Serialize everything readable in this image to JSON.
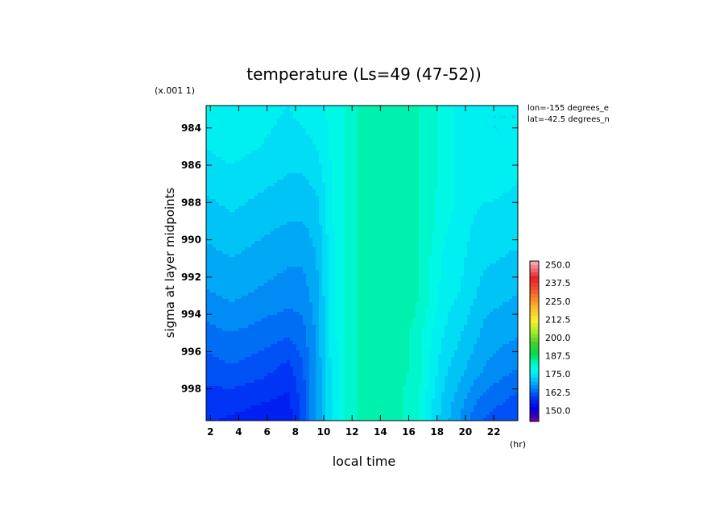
{
  "chart_data": {
    "type": "heatmap",
    "title": "temperature (Ls=49 (47-52))",
    "xlabel": "local time",
    "ylabel": "sigma at layer midpoints",
    "x_unit": "(hr)",
    "y_scale_note": "(x.001 1)",
    "annotations": [
      "lon=-155 degrees_e",
      "lat=-42.5 degrees_n"
    ],
    "xlim": [
      1.7,
      23.7
    ],
    "ylim": [
      999.7,
      982.8
    ],
    "x_ticks": [
      2,
      4,
      6,
      8,
      10,
      12,
      14,
      16,
      18,
      20,
      22
    ],
    "x_tick_labels": [
      "2",
      "4",
      "6",
      "8",
      "10",
      "12",
      "14",
      "16",
      "18",
      "20",
      "22"
    ],
    "y_ticks": [
      984,
      986,
      988,
      990,
      992,
      994,
      996,
      998
    ],
    "y_tick_labels": [
      "984",
      "986",
      "988",
      "990",
      "992",
      "994",
      "996",
      "998"
    ],
    "x": [
      1.5,
      3.5,
      5.5,
      7.5,
      8.5,
      9.5,
      10.5,
      11.5,
      12.5,
      14.5,
      16.5,
      17.5,
      18.5,
      19.5,
      20.5,
      21.5,
      23.5
    ],
    "y": [
      982.8,
      985.0,
      987.0,
      989.0,
      991.0,
      993.0,
      995.0,
      997.0,
      998.5,
      999.7
    ],
    "z": [
      [
        178,
        177,
        176,
        175,
        176,
        177,
        178,
        180,
        183,
        184,
        183,
        181,
        179,
        177,
        176,
        175,
        175
      ],
      [
        175,
        176,
        175,
        174,
        174,
        175,
        178,
        180,
        183,
        184,
        183,
        181,
        179,
        177,
        176,
        175,
        175
      ],
      [
        173,
        174,
        173,
        172,
        172,
        173,
        177,
        180,
        183,
        184,
        183,
        181,
        179,
        177,
        176,
        176,
        175
      ],
      [
        171,
        172,
        171,
        170,
        170,
        171,
        177,
        180,
        183,
        184,
        183,
        181,
        178,
        177,
        175,
        174,
        174
      ],
      [
        169,
        170,
        169,
        168,
        168,
        170,
        176,
        180,
        183,
        184,
        183,
        180,
        177,
        176,
        174,
        173,
        172
      ],
      [
        167,
        168,
        167,
        166,
        166,
        169,
        176,
        180,
        183,
        184,
        183,
        180,
        176,
        175,
        173,
        171,
        170
      ],
      [
        164,
        165,
        164,
        163,
        164,
        168,
        176,
        180,
        183,
        184,
        182,
        178,
        175,
        173,
        171,
        169,
        168
      ],
      [
        161,
        162,
        161,
        159,
        162,
        168,
        175,
        180,
        183,
        184,
        182,
        177,
        173,
        171,
        169,
        167,
        165
      ],
      [
        159,
        159,
        158,
        157,
        161,
        168,
        175,
        180,
        183,
        184,
        181,
        176,
        172,
        169,
        166,
        164,
        162
      ],
      [
        158,
        157,
        156,
        156,
        161,
        168,
        175,
        180,
        183,
        184,
        181,
        175,
        171,
        168,
        164,
        162,
        160
      ]
    ],
    "colorbar": {
      "tick_labels": [
        "250.0",
        "237.5",
        "225.0",
        "212.5",
        "200.0",
        "187.5",
        "175.0",
        "162.5",
        "150.0"
      ],
      "tick_values": [
        250,
        237.5,
        225,
        212.5,
        200,
        187.5,
        175,
        162.5,
        150
      ],
      "min": 142.5,
      "max": 252.5,
      "level_step": 2.5
    },
    "grid": false,
    "legend": "colorbar at right"
  }
}
